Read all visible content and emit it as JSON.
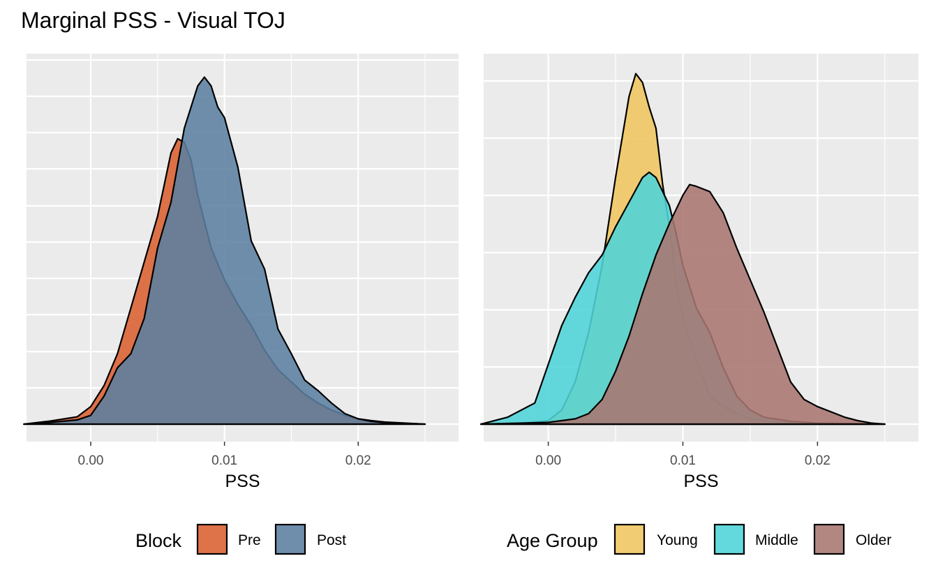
{
  "title": "Marginal PSS - Visual TOJ",
  "chart_data": [
    {
      "type": "area",
      "xlabel": "PSS",
      "ylabel": "",
      "xlim": [
        -0.0048,
        0.0275
      ],
      "ylim": [
        0,
        1.0
      ],
      "x_ticks": [
        "0.00",
        "0.01",
        "0.02"
      ],
      "x_tick_values": [
        0.0,
        0.01,
        0.02
      ],
      "legend": {
        "title": "Block",
        "placement": "bottom"
      },
      "grid": true,
      "series": [
        {
          "name": "Pre",
          "color": "#D95F30",
          "points": [
            [
              -0.005,
              0
            ],
            [
              -0.003,
              0.009
            ],
            [
              -0.001,
              0.021
            ],
            [
              0.0,
              0.05
            ],
            [
              0.001,
              0.11
            ],
            [
              0.002,
              0.2
            ],
            [
              0.003,
              0.33
            ],
            [
              0.004,
              0.46
            ],
            [
              0.005,
              0.59
            ],
            [
              0.006,
              0.77
            ],
            [
              0.0065,
              0.81
            ],
            [
              0.007,
              0.8
            ],
            [
              0.0075,
              0.75
            ],
            [
              0.008,
              0.65
            ],
            [
              0.009,
              0.5
            ],
            [
              0.01,
              0.41
            ],
            [
              0.011,
              0.34
            ],
            [
              0.012,
              0.28
            ],
            [
              0.013,
              0.21
            ],
            [
              0.014,
              0.155
            ],
            [
              0.015,
              0.12
            ],
            [
              0.016,
              0.085
            ],
            [
              0.017,
              0.06
            ],
            [
              0.018,
              0.04
            ],
            [
              0.019,
              0.025
            ],
            [
              0.02,
              0.015
            ],
            [
              0.021,
              0.01
            ],
            [
              0.022,
              0.006
            ],
            [
              0.023,
              0.004
            ],
            [
              0.025,
              0
            ]
          ]
        },
        {
          "name": "Post",
          "color": "#5B7FA1",
          "points": [
            [
              -0.005,
              0
            ],
            [
              -0.003,
              0.005
            ],
            [
              -0.001,
              0.012
            ],
            [
              0.0,
              0.025
            ],
            [
              0.001,
              0.08
            ],
            [
              0.002,
              0.16
            ],
            [
              0.003,
              0.2
            ],
            [
              0.004,
              0.3
            ],
            [
              0.005,
              0.5
            ],
            [
              0.006,
              0.63
            ],
            [
              0.007,
              0.84
            ],
            [
              0.008,
              0.96
            ],
            [
              0.0085,
              0.985
            ],
            [
              0.009,
              0.96
            ],
            [
              0.0095,
              0.9
            ],
            [
              0.01,
              0.87
            ],
            [
              0.011,
              0.73
            ],
            [
              0.012,
              0.52
            ],
            [
              0.013,
              0.44
            ],
            [
              0.014,
              0.27
            ],
            [
              0.015,
              0.2
            ],
            [
              0.016,
              0.125
            ],
            [
              0.017,
              0.095
            ],
            [
              0.018,
              0.06
            ],
            [
              0.019,
              0.03
            ],
            [
              0.02,
              0.015
            ],
            [
              0.021,
              0.008
            ],
            [
              0.022,
              0.004
            ],
            [
              0.023,
              0.003
            ],
            [
              0.025,
              0
            ]
          ]
        }
      ]
    },
    {
      "type": "area",
      "xlabel": "PSS",
      "ylabel": "",
      "xlim": [
        -0.0048,
        0.0275
      ],
      "ylim": [
        0,
        1.0
      ],
      "x_ticks": [
        "0.00",
        "0.01",
        "0.02"
      ],
      "x_tick_values": [
        0.0,
        0.01,
        0.02
      ],
      "legend": {
        "title": "Age Group",
        "placement": "bottom"
      },
      "grid": true,
      "series": [
        {
          "name": "Young",
          "color": "#EFC55F",
          "points": [
            [
              -0.005,
              0
            ],
            [
              -0.002,
              0.003
            ],
            [
              0.0,
              0.01
            ],
            [
              0.001,
              0.04
            ],
            [
              0.002,
              0.12
            ],
            [
              0.003,
              0.26
            ],
            [
              0.004,
              0.45
            ],
            [
              0.005,
              0.7
            ],
            [
              0.006,
              0.93
            ],
            [
              0.0065,
              0.995
            ],
            [
              0.007,
              0.97
            ],
            [
              0.0075,
              0.9
            ],
            [
              0.008,
              0.84
            ],
            [
              0.0085,
              0.68
            ],
            [
              0.009,
              0.56
            ],
            [
              0.0095,
              0.4
            ],
            [
              0.01,
              0.3
            ],
            [
              0.011,
              0.18
            ],
            [
              0.012,
              0.08
            ],
            [
              0.013,
              0.05
            ],
            [
              0.014,
              0.03
            ],
            [
              0.015,
              0.015
            ],
            [
              0.017,
              0.006
            ],
            [
              0.02,
              0.002
            ],
            [
              0.025,
              0
            ]
          ]
        },
        {
          "name": "Middle",
          "color": "#4ED4D8",
          "points": [
            [
              -0.005,
              0
            ],
            [
              -0.003,
              0.02
            ],
            [
              -0.001,
              0.06
            ],
            [
              0.0,
              0.17
            ],
            [
              0.001,
              0.28
            ],
            [
              0.002,
              0.36
            ],
            [
              0.003,
              0.43
            ],
            [
              0.004,
              0.48
            ],
            [
              0.005,
              0.56
            ],
            [
              0.006,
              0.63
            ],
            [
              0.007,
              0.7
            ],
            [
              0.0075,
              0.715
            ],
            [
              0.008,
              0.7
            ],
            [
              0.009,
              0.62
            ],
            [
              0.0095,
              0.54
            ],
            [
              0.01,
              0.45
            ],
            [
              0.011,
              0.33
            ],
            [
              0.012,
              0.26
            ],
            [
              0.013,
              0.16
            ],
            [
              0.014,
              0.08
            ],
            [
              0.015,
              0.04
            ],
            [
              0.016,
              0.02
            ],
            [
              0.018,
              0.008
            ],
            [
              0.02,
              0.003
            ],
            [
              0.025,
              0
            ]
          ]
        },
        {
          "name": "Older",
          "color": "#A87570",
          "points": [
            [
              -0.005,
              0
            ],
            [
              -0.003,
              0.002
            ],
            [
              0.0,
              0.005
            ],
            [
              0.002,
              0.015
            ],
            [
              0.003,
              0.03
            ],
            [
              0.004,
              0.07
            ],
            [
              0.005,
              0.15
            ],
            [
              0.006,
              0.25
            ],
            [
              0.007,
              0.37
            ],
            [
              0.008,
              0.48
            ],
            [
              0.009,
              0.57
            ],
            [
              0.01,
              0.65
            ],
            [
              0.0105,
              0.68
            ],
            [
              0.011,
              0.675
            ],
            [
              0.012,
              0.66
            ],
            [
              0.013,
              0.6
            ],
            [
              0.014,
              0.5
            ],
            [
              0.015,
              0.41
            ],
            [
              0.016,
              0.32
            ],
            [
              0.017,
              0.22
            ],
            [
              0.018,
              0.12
            ],
            [
              0.019,
              0.07
            ],
            [
              0.02,
              0.05
            ],
            [
              0.021,
              0.035
            ],
            [
              0.022,
              0.02
            ],
            [
              0.023,
              0.01
            ],
            [
              0.024,
              0.003
            ],
            [
              0.025,
              0
            ]
          ]
        }
      ]
    }
  ]
}
